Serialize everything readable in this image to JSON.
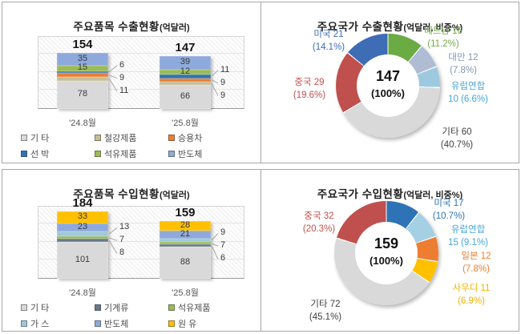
{
  "chart_data": [
    {
      "id": "export_items",
      "type": "stacked_bar",
      "title": "주요품목 수출현황",
      "title_unit": "(억달러)",
      "categories": [
        "'24.8월",
        "'25.8월"
      ],
      "totals": [
        "154",
        "147"
      ],
      "series": [
        {
          "name": "기 타",
          "color": "#D9D9D9",
          "values": [
            78,
            66
          ]
        },
        {
          "name": "철강제품",
          "color": "#C6BE94",
          "values": [
            11,
            9
          ]
        },
        {
          "name": "승용차",
          "color": "#ED7D31",
          "values": [
            9,
            9
          ]
        },
        {
          "name": "선 박",
          "color": "#2E75B6",
          "values": [
            6,
            11
          ]
        },
        {
          "name": "석유제품",
          "color": "#9BBB59",
          "values": [
            15,
            12
          ]
        },
        {
          "name": "반도체",
          "color": "#8EA9DB",
          "values": [
            35,
            39
          ]
        }
      ],
      "ylim": [
        0,
        200
      ],
      "grid": true,
      "legend_position": "bottom"
    },
    {
      "id": "export_countries",
      "type": "donut",
      "title": "주요국가 수출현황",
      "title_unit": "(억달러, 비중%)",
      "center_value": "147",
      "center_pct": "(100%)",
      "slices": [
        {
          "name": "베트남",
          "value": 16,
          "pct": "11.2%",
          "color": "#6BAB44",
          "label_color": "#70AD47"
        },
        {
          "name": "대만",
          "value": 12,
          "pct": "7.8%",
          "color": "#AFBCD4",
          "label_color": "#8496B0"
        },
        {
          "name": "유럽연합",
          "value": 10,
          "pct": "6.6%",
          "color": "#9CC9DF",
          "label_color": "#45A5DB"
        },
        {
          "name": "기타",
          "value": 60,
          "pct": "40.7%",
          "color": "#D9D9D9",
          "label_color": "#404040"
        },
        {
          "name": "중국",
          "value": 29,
          "pct": "19.6%",
          "color": "#C0504D",
          "label_color": "#C0504D"
        },
        {
          "name": "미국",
          "value": 21,
          "pct": "14.1%",
          "color": "#3E6CB5",
          "label_color": "#3E6CB5"
        }
      ]
    },
    {
      "id": "import_items",
      "type": "stacked_bar",
      "title": "주요품목 수입현황",
      "title_unit": "(억달러)",
      "categories": [
        "'24.8월",
        "'25.8월"
      ],
      "totals": [
        "184",
        "159"
      ],
      "series": [
        {
          "name": "기 타",
          "color": "#D9D9D9",
          "values": [
            101,
            88
          ]
        },
        {
          "name": "기계류",
          "color": "#68788B",
          "values": [
            8,
            6
          ]
        },
        {
          "name": "석유제품",
          "color": "#9BBB59",
          "values": [
            7,
            7
          ]
        },
        {
          "name": "가 스",
          "color": "#9EC8DA",
          "values": [
            13,
            9
          ]
        },
        {
          "name": "반도체",
          "color": "#8EA9DB",
          "values": [
            23,
            21
          ]
        },
        {
          "name": "원 유",
          "color": "#FFC000",
          "values": [
            33,
            28
          ]
        }
      ],
      "ylim": [
        0,
        200
      ],
      "grid": true,
      "legend_position": "bottom"
    },
    {
      "id": "import_countries",
      "type": "donut",
      "title": "주요국가 수입현황",
      "title_unit": "(억달러, 비중%)",
      "center_value": "159",
      "center_pct": "(100%)",
      "slices": [
        {
          "name": "미국",
          "value": 17,
          "pct": "10.7%",
          "color": "#2E73B5",
          "label_color": "#2E75B6"
        },
        {
          "name": "유럽연합",
          "value": 15,
          "pct": "9.1%",
          "color": "#A4D0E4",
          "label_color": "#45A5DB"
        },
        {
          "name": "일본",
          "value": 12,
          "pct": "7.8%",
          "color": "#ED7D31",
          "label_color": "#ED7D31"
        },
        {
          "name": "사우디",
          "value": 11,
          "pct": "6.9%",
          "color": "#FFC000",
          "label_color": "#F2B200"
        },
        {
          "name": "기타",
          "value": 72,
          "pct": "45.1%",
          "color": "#D9D9D9",
          "label_color": "#404040"
        },
        {
          "name": "중국",
          "value": 32,
          "pct": "20.3%",
          "color": "#C0504D",
          "label_color": "#C0504D"
        }
      ]
    }
  ]
}
